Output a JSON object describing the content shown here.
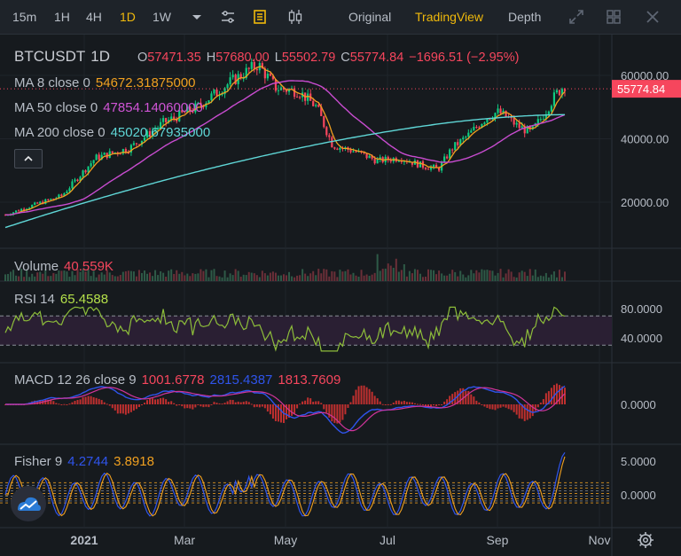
{
  "toolbar": {
    "intervals": [
      "15m",
      "1H",
      "4H",
      "1D",
      "1W"
    ],
    "active_interval": "1D",
    "views": [
      "Original",
      "TradingView",
      "Depth"
    ],
    "active_view": "TradingView"
  },
  "symbol": {
    "pair": "BTCUSDT",
    "interval": "1D"
  },
  "ohlc": {
    "o_label": "O",
    "o": "57471.35",
    "h_label": "H",
    "h": "57680.00",
    "l_label": "L",
    "l": "55502.79",
    "c_label": "C",
    "c": "55774.84",
    "change": "−1696.51 (−2.95%)"
  },
  "ma": [
    {
      "label": "MA 8 close 0",
      "value": "54672.31875000",
      "color": "#f0a020"
    },
    {
      "label": "MA 50 close 0",
      "value": "47854.14060000",
      "color": "#d054d6"
    },
    {
      "label": "MA 200 close 0",
      "value": "45020.67935000",
      "color": "#5fd6d6"
    }
  ],
  "price_axis": {
    "ticks": [
      "60000.00",
      "40000.00",
      "20000.00"
    ],
    "last_price": "55774.84",
    "last_color": "#f6465d"
  },
  "volume": {
    "label": "Volume",
    "value": "40.559K",
    "value_color": "#f6465d"
  },
  "rsi": {
    "label": "RSI 14",
    "value": "65.4588",
    "value_color": "#b4e04a",
    "ticks": [
      "80.0000",
      "40.0000"
    ]
  },
  "macd": {
    "label": "MACD 12 26 close 9",
    "v1": "1001.6778",
    "v2": "2815.4387",
    "v3": "1813.7609",
    "tick": "0.0000"
  },
  "fisher": {
    "label": "Fisher 9",
    "v1": "4.2744",
    "v2": "3.8918",
    "ticks": [
      "5.0000",
      "0.0000"
    ]
  },
  "time_axis": [
    "2021",
    "Mar",
    "May",
    "Jul",
    "Sep",
    "Nov"
  ],
  "icons": [
    "chevron-down-icon",
    "indicator-settings-icon",
    "indicators-icon",
    "candle-type-icon",
    "fullscreen-icon",
    "grid-layout-icon",
    "close-icon",
    "gear-icon",
    "chevron-up-icon",
    "tradingview-logo-icon"
  ]
}
